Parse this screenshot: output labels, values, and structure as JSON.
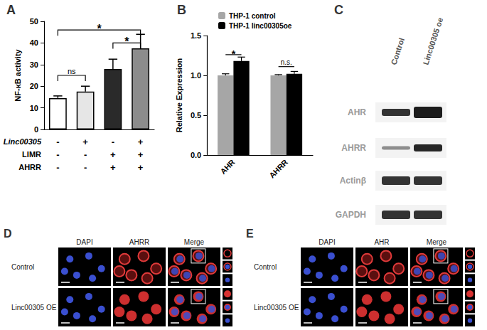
{
  "chart_data": [
    {
      "type": "bar",
      "title": "A",
      "y_label": "NF-κB activity",
      "values": [
        14.5,
        17.5,
        28,
        37.5
      ],
      "errors": [
        1,
        2.5,
        4.5,
        6.5
      ],
      "colors": [
        "#ffffff",
        "#e6e6e6",
        "#2a2a2a",
        "#8c8c8c"
      ],
      "ylim": [
        0,
        50
      ],
      "yticks": [
        0,
        10,
        20,
        30,
        40,
        50
      ],
      "grid": false,
      "condition_table": [
        {
          "label": "Linc00305",
          "signs": [
            "-",
            "+",
            "-",
            "+"
          ]
        },
        {
          "label": "LIMR",
          "signs": [
            "-",
            "-",
            "+",
            "+"
          ]
        },
        {
          "label": "AHRR",
          "signs": [
            "-",
            "-",
            "+",
            "+"
          ]
        }
      ],
      "significance": [
        {
          "from": 0,
          "to": 1,
          "y": 25,
          "label": "ns"
        },
        {
          "from": 2,
          "to": 3,
          "y": 40,
          "label": "*"
        },
        {
          "from": 0,
          "to": 3,
          "y": 46,
          "label": "*"
        }
      ]
    },
    {
      "type": "bar",
      "title": "B",
      "y_label": "Relative Expression",
      "categories": [
        "AHR",
        "AHRR"
      ],
      "series": [
        {
          "name": "THP-1 control",
          "color": "#a6a6a6",
          "values": [
            1.0,
            1.0
          ],
          "errors": [
            0.02,
            0.01
          ]
        },
        {
          "name": "THP-1 linc00305oe",
          "color": "#000000",
          "values": [
            1.18,
            1.02
          ],
          "errors": [
            0.05,
            0.03
          ]
        }
      ],
      "ylim": [
        0,
        1.5
      ],
      "yticks": [
        {
          "value": 0,
          "label": "0.0"
        },
        {
          "value": 0.5,
          "label": "0.5"
        },
        {
          "value": 1,
          "label": "1.0"
        },
        {
          "value": 1.5,
          "label": "1.5"
        }
      ],
      "grid": false,
      "legend": "top-left",
      "significance": [
        {
          "category": 0,
          "y": 1.26,
          "label": "*"
        },
        {
          "category": 1,
          "y": 1.11,
          "label": "n.s."
        }
      ]
    }
  ],
  "western_blot": {
    "title": "C",
    "lanes": [
      "Control",
      "Linc00305 oe"
    ],
    "rows": [
      "AHR",
      "AHRR",
      "Actinβ",
      "GAPDH"
    ]
  },
  "microscopy": [
    {
      "title": "D",
      "columns": [
        "DAPI",
        "AHRR",
        "Merge"
      ],
      "rows": [
        "Control",
        "Linc00305 OE"
      ]
    },
    {
      "title": "E",
      "columns": [
        "DAPI",
        "AHR",
        "Merge"
      ],
      "rows": [
        "Control",
        "Linc00305 OE"
      ]
    }
  ]
}
